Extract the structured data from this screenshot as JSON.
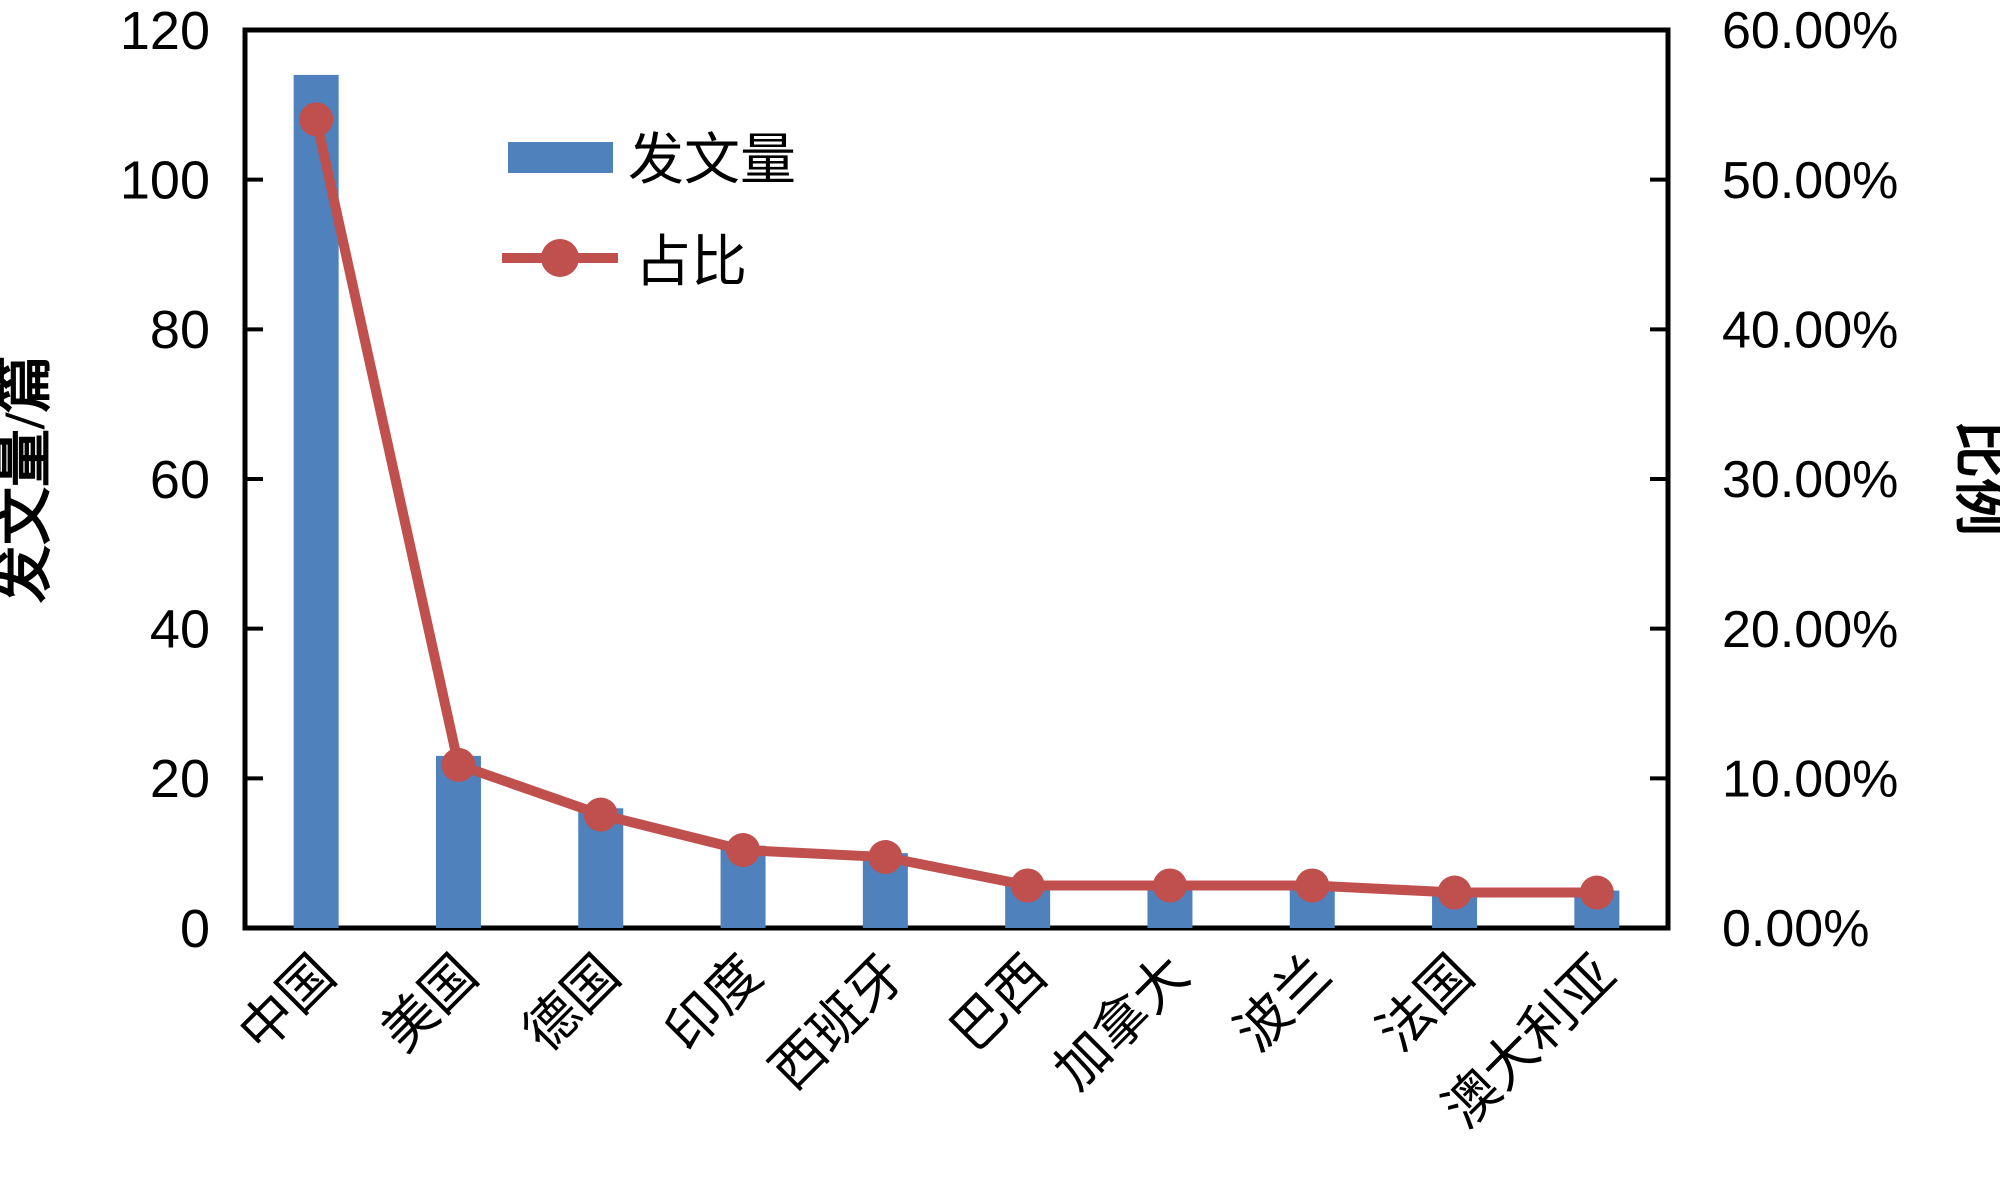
{
  "chart_data": {
    "type": "bar",
    "subtype": "bar-line-combo",
    "categories": [
      "中国",
      "美国",
      "德国",
      "印度",
      "西班牙",
      "巴西",
      "加拿大",
      "波兰",
      "法国",
      "澳大利亚"
    ],
    "series": [
      {
        "name": "发文量",
        "type": "bar",
        "axis": "left",
        "values": [
          114,
          23,
          16,
          11,
          10,
          6,
          6,
          6,
          5,
          5
        ]
      },
      {
        "name": "占比",
        "type": "line",
        "axis": "right",
        "unit": "%",
        "values": [
          54.03,
          10.9,
          7.58,
          5.21,
          4.74,
          2.84,
          2.84,
          2.84,
          2.37,
          2.37
        ]
      }
    ],
    "left_axis": {
      "title": "发文量/篇",
      "min": 0,
      "max": 120,
      "tick_step": 20,
      "tick_labels": [
        "120",
        "100",
        "80",
        "60",
        "40",
        "20",
        "0"
      ]
    },
    "right_axis": {
      "title": "比例",
      "min": 0,
      "max": 60,
      "tick_step": 10,
      "tick_labels": [
        "60.00%",
        "50.00%",
        "40.00%",
        "30.00%",
        "20.00%",
        "10.00%",
        "0.00%"
      ]
    },
    "legend": {
      "position": "inside-top-left",
      "items": [
        {
          "label": "发文量",
          "swatch": "bar"
        },
        {
          "label": "占比",
          "swatch": "line-marker"
        }
      ]
    },
    "grid": false,
    "x_label_rotation_deg": -45
  },
  "colors": {
    "bar": "#4F81BD",
    "line": "#C0504D",
    "axis": "#000000",
    "background": "#FFFFFF"
  }
}
